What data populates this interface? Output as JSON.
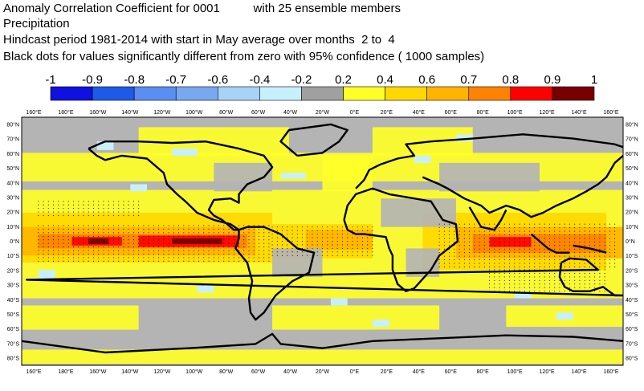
{
  "title": {
    "line1": "Anomaly Correlation Coefficient for 0001          with 25 ensemble members",
    "line2": "Precipitation",
    "line3": "Hindcast period 1981-2014 with start in May average over months  2 to  4",
    "line4": "Black dots for values significantly different from zero with 95% confidence ( 1000 samples)"
  },
  "colorbar": {
    "labels": [
      "-1",
      "-0.9",
      "-0.8",
      "-0.7",
      "-0.6",
      "-0.4",
      "-0.2",
      "0.2",
      "0.4",
      "0.6",
      "0.7",
      "0.8",
      "0.9",
      "1"
    ],
    "colors": [
      "#1010e0",
      "#1e5ae8",
      "#5a8ef0",
      "#78a8f0",
      "#a8d2f8",
      "#c8f0fc",
      "#a0a0a0",
      "#ffff28",
      "#ffd800",
      "#ffb400",
      "#ff8200",
      "#ff0000",
      "#780000"
    ]
  },
  "map": {
    "lon_labels": [
      "160°E",
      "180°E",
      "160°W",
      "140°W",
      "120°W",
      "100°W",
      "80°W",
      "60°W",
      "40°W",
      "20°W",
      "0°E",
      "20°E",
      "40°E",
      "60°E",
      "80°E",
      "100°E",
      "120°E",
      "140°E",
      "160°E"
    ],
    "lat_labels": [
      "80°N",
      "70°N",
      "60°N",
      "50°N",
      "40°N",
      "30°N",
      "20°N",
      "10°N",
      "0°N",
      "10°S",
      "20°S",
      "30°S",
      "40°S",
      "50°S",
      "60°S",
      "70°S",
      "80°S"
    ],
    "colors": {
      "grey": "#b4b4b4",
      "yellow": "#ffff28",
      "gold": "#ffd800",
      "orange": "#ffb400",
      "darkorange": "#ff8200",
      "red": "#ff0000",
      "maroon": "#780000",
      "cyan": "#c8f0fc",
      "coast": "#000000"
    }
  }
}
